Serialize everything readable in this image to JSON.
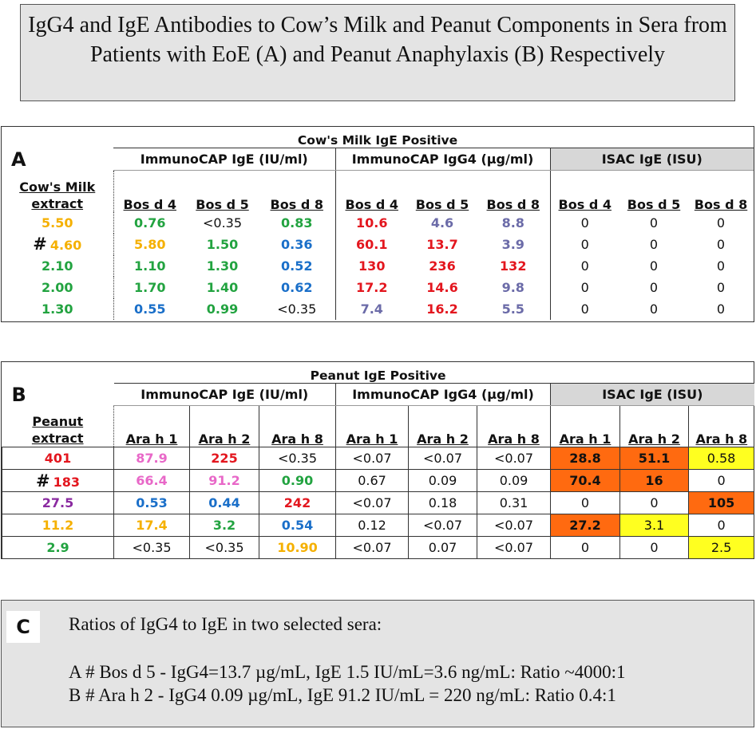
{
  "title": "IgG4 and IgE Antibodies to Cow’s Milk and Peanut Components in Sera from Patients with EoE (A) and Peanut Anaphylaxis (B) Respectively",
  "panel_a": {
    "letter": "A",
    "table_title": "Cow's Milk IgE Positive",
    "groups": [
      "ImmunoCAP IgE (IU/ml)",
      "ImmunoCAP IgG4 (µg/ml)",
      "ISAC IgE (ISU)"
    ],
    "extract_header": [
      "Cow's Milk",
      "extract"
    ],
    "column_headers": [
      "Bos d 4",
      "Bos d 5",
      "Bos d 8",
      "Bos d 4",
      "Bos d 5",
      "Bos d 8",
      "Bos d 4",
      "Bos d 5",
      "Bos d 8"
    ],
    "rows": [
      {
        "marker": "",
        "cells": [
          {
            "t": "5.50",
            "c": "yellow",
            "b": true
          },
          {
            "t": "0.76",
            "c": "green",
            "b": true
          },
          {
            "t": "<0.35",
            "c": "black",
            "b": false
          },
          {
            "t": "0.83",
            "c": "green",
            "b": true
          },
          {
            "t": "10.6",
            "c": "red",
            "b": true
          },
          {
            "t": "4.6",
            "c": "slate",
            "b": true
          },
          {
            "t": "8.8",
            "c": "slate",
            "b": true
          },
          {
            "t": "0",
            "c": "black",
            "b": false
          },
          {
            "t": "0",
            "c": "black",
            "b": false
          },
          {
            "t": "0",
            "c": "black",
            "b": false
          }
        ]
      },
      {
        "marker": "#",
        "cells": [
          {
            "t": "4.60",
            "c": "yellow",
            "b": true
          },
          {
            "t": "5.80",
            "c": "yellow",
            "b": true
          },
          {
            "t": "1.50",
            "c": "green",
            "b": true
          },
          {
            "t": "0.36",
            "c": "blue",
            "b": true
          },
          {
            "t": "60.1",
            "c": "red",
            "b": true
          },
          {
            "t": "13.7",
            "c": "red",
            "b": true
          },
          {
            "t": "3.9",
            "c": "slate",
            "b": true
          },
          {
            "t": "0",
            "c": "black",
            "b": false
          },
          {
            "t": "0",
            "c": "black",
            "b": false
          },
          {
            "t": "0",
            "c": "black",
            "b": false
          }
        ]
      },
      {
        "marker": "",
        "cells": [
          {
            "t": "2.10",
            "c": "green",
            "b": true
          },
          {
            "t": "1.10",
            "c": "green",
            "b": true
          },
          {
            "t": "1.30",
            "c": "green",
            "b": true
          },
          {
            "t": "0.52",
            "c": "blue",
            "b": true
          },
          {
            "t": "130",
            "c": "red",
            "b": true
          },
          {
            "t": "236",
            "c": "red",
            "b": true
          },
          {
            "t": "132",
            "c": "red",
            "b": true
          },
          {
            "t": "0",
            "c": "black",
            "b": false
          },
          {
            "t": "0",
            "c": "black",
            "b": false
          },
          {
            "t": "0",
            "c": "black",
            "b": false
          }
        ]
      },
      {
        "marker": "",
        "cells": [
          {
            "t": "2.00",
            "c": "green",
            "b": true
          },
          {
            "t": "1.70",
            "c": "green",
            "b": true
          },
          {
            "t": "1.40",
            "c": "green",
            "b": true
          },
          {
            "t": "0.62",
            "c": "blue",
            "b": true
          },
          {
            "t": "17.2",
            "c": "red",
            "b": true
          },
          {
            "t": "14.6",
            "c": "red",
            "b": true
          },
          {
            "t": "9.8",
            "c": "slate",
            "b": true
          },
          {
            "t": "0",
            "c": "black",
            "b": false
          },
          {
            "t": "0",
            "c": "black",
            "b": false
          },
          {
            "t": "0",
            "c": "black",
            "b": false
          }
        ]
      },
      {
        "marker": "",
        "cells": [
          {
            "t": "1.30",
            "c": "green",
            "b": true
          },
          {
            "t": "0.55",
            "c": "blue",
            "b": true
          },
          {
            "t": "0.99",
            "c": "green",
            "b": true
          },
          {
            "t": "<0.35",
            "c": "black",
            "b": false
          },
          {
            "t": "7.4",
            "c": "slate",
            "b": true
          },
          {
            "t": "16.2",
            "c": "red",
            "b": true
          },
          {
            "t": "5.5",
            "c": "slate",
            "b": true
          },
          {
            "t": "0",
            "c": "black",
            "b": false
          },
          {
            "t": "0",
            "c": "black",
            "b": false
          },
          {
            "t": "0",
            "c": "black",
            "b": false
          }
        ]
      }
    ]
  },
  "panel_b": {
    "letter": "B",
    "table_title": "Peanut IgE Positive",
    "groups": [
      "ImmunoCAP IgE (IU/ml)",
      "ImmunoCAP IgG4 (µg/ml)",
      "ISAC IgE (ISU)"
    ],
    "extract_header": [
      "Peanut",
      "extract"
    ],
    "column_headers": [
      "Ara h 1",
      "Ara h 2",
      "Ara h 8",
      "Ara h 1",
      "Ara h 2",
      "Ara h 8",
      "Ara h 1",
      "Ara h 2",
      "Ara h 8"
    ],
    "rows": [
      {
        "marker": "",
        "cells": [
          {
            "t": "401",
            "c": "red",
            "b": true
          },
          {
            "t": "87.9",
            "c": "pink",
            "b": true
          },
          {
            "t": "225",
            "c": "red",
            "b": true
          },
          {
            "t": "<0.35",
            "c": "black",
            "b": false
          },
          {
            "t": "<0.07",
            "c": "black",
            "b": false
          },
          {
            "t": "<0.07",
            "c": "black",
            "b": false
          },
          {
            "t": "<0.07",
            "c": "black",
            "b": false
          },
          {
            "t": "28.8",
            "c": "black",
            "b": true,
            "bg": "orange"
          },
          {
            "t": "51.1",
            "c": "black",
            "b": true,
            "bg": "orange"
          },
          {
            "t": "0.58",
            "c": "black",
            "b": false,
            "bg": "yellow"
          }
        ]
      },
      {
        "marker": "#",
        "cells": [
          {
            "t": "183",
            "c": "red",
            "b": true
          },
          {
            "t": "66.4",
            "c": "pink",
            "b": true
          },
          {
            "t": "91.2",
            "c": "pink",
            "b": true
          },
          {
            "t": "0.90",
            "c": "green",
            "b": true
          },
          {
            "t": "0.67",
            "c": "black",
            "b": false
          },
          {
            "t": "0.09",
            "c": "black",
            "b": false
          },
          {
            "t": "0.09",
            "c": "black",
            "b": false
          },
          {
            "t": "70.4",
            "c": "black",
            "b": true,
            "bg": "orange"
          },
          {
            "t": "16",
            "c": "black",
            "b": true,
            "bg": "orange"
          },
          {
            "t": "0",
            "c": "black",
            "b": false
          }
        ]
      },
      {
        "marker": "",
        "cells": [
          {
            "t": "27.5",
            "c": "purple",
            "b": true
          },
          {
            "t": "0.53",
            "c": "blue",
            "b": true
          },
          {
            "t": "0.44",
            "c": "blue",
            "b": true
          },
          {
            "t": "242",
            "c": "red",
            "b": true
          },
          {
            "t": "<0.07",
            "c": "black",
            "b": false
          },
          {
            "t": "0.18",
            "c": "black",
            "b": false
          },
          {
            "t": "0.31",
            "c": "black",
            "b": false
          },
          {
            "t": "0",
            "c": "black",
            "b": false
          },
          {
            "t": "0",
            "c": "black",
            "b": false
          },
          {
            "t": "105",
            "c": "black",
            "b": true,
            "bg": "orange"
          }
        ]
      },
      {
        "marker": "",
        "cells": [
          {
            "t": "11.2",
            "c": "yellow",
            "b": true
          },
          {
            "t": "17.4",
            "c": "yellow",
            "b": true
          },
          {
            "t": "3.2",
            "c": "green",
            "b": true
          },
          {
            "t": "0.54",
            "c": "blue",
            "b": true
          },
          {
            "t": "0.12",
            "c": "black",
            "b": false
          },
          {
            "t": "<0.07",
            "c": "black",
            "b": false
          },
          {
            "t": "<0.07",
            "c": "black",
            "b": false
          },
          {
            "t": "27.2",
            "c": "black",
            "b": true,
            "bg": "orange"
          },
          {
            "t": "3.1",
            "c": "black",
            "b": false,
            "bg": "yellow"
          },
          {
            "t": "0",
            "c": "black",
            "b": false
          }
        ]
      },
      {
        "marker": "",
        "cells": [
          {
            "t": "2.9",
            "c": "green",
            "b": true
          },
          {
            "t": "<0.35",
            "c": "black",
            "b": false
          },
          {
            "t": "<0.35",
            "c": "black",
            "b": false
          },
          {
            "t": "10.90",
            "c": "yellow",
            "b": true
          },
          {
            "t": "<0.07",
            "c": "black",
            "b": false
          },
          {
            "t": "0.07",
            "c": "black",
            "b": false
          },
          {
            "t": "<0.07",
            "c": "black",
            "b": false
          },
          {
            "t": "0",
            "c": "black",
            "b": false
          },
          {
            "t": "0",
            "c": "black",
            "b": false
          },
          {
            "t": "2.5",
            "c": "black",
            "b": false,
            "bg": "yellow"
          }
        ]
      }
    ]
  },
  "panel_c": {
    "letter": "C",
    "heading": "Ratios of IgG4 to IgE in two selected sera:",
    "lines": [
      "A # Bos d 5 - IgG4=13.7 µg/mL, IgE 1.5 IU/mL=3.6 ng/mL:  Ratio ~4000:1",
      "B # Ara h 2 - IgG4 0.09 µg/mL, IgE 91.2 IU/mL = 220 ng/mL:  Ratio 0.4:1"
    ]
  },
  "colors": {
    "yellow": "#f5b000",
    "green": "#22a340",
    "blue": "#1a6fc9",
    "red": "#e3161e",
    "slate": "#6b6ba8",
    "pink": "#e868c8",
    "purple": "#8a2aa0",
    "black": "#111111",
    "highlight_orange": "#ff6a10",
    "highlight_yellow": "#ffff20"
  }
}
